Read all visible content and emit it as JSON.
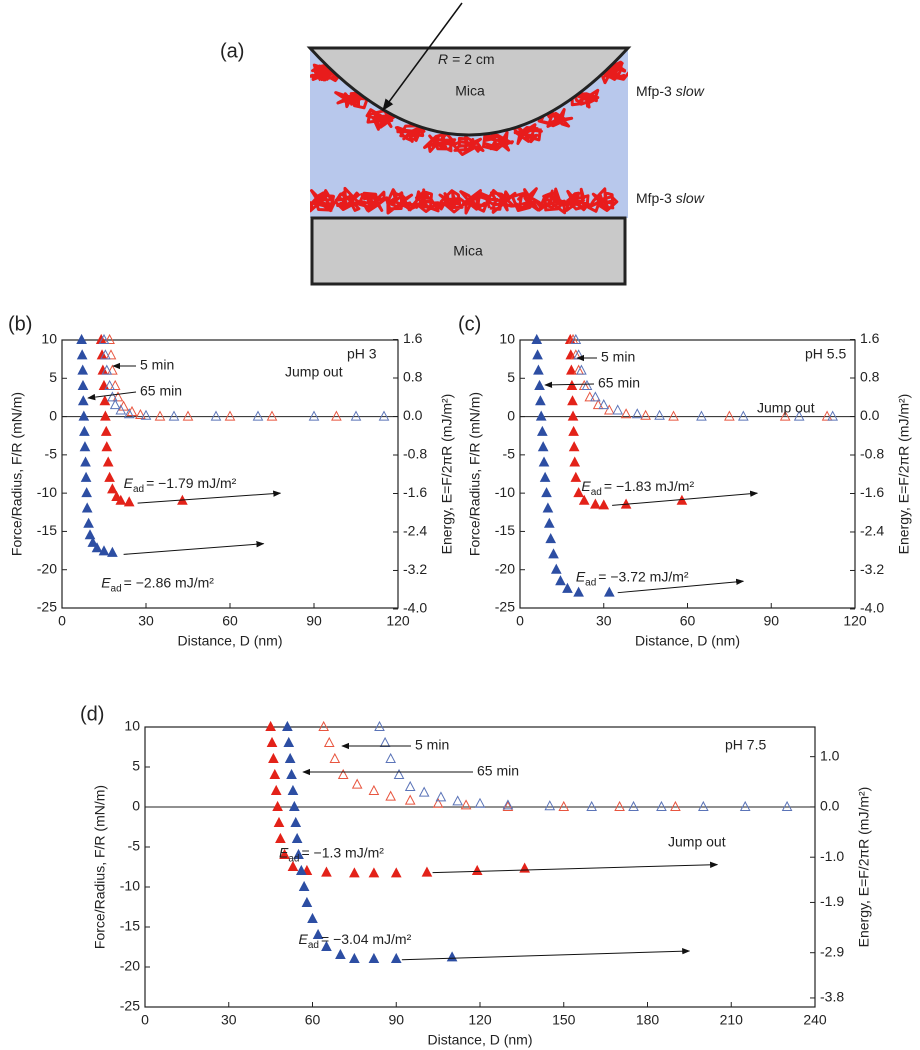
{
  "diagram": {
    "label": "(a)",
    "radius_symbol": "R",
    "radius_text": "= 2 cm",
    "top": "Mica",
    "bottom": "Mica",
    "films": [
      {
        "protein": "Mfp-3",
        "condition": "slow"
      },
      {
        "protein": "Mfp-3",
        "condition": "slow"
      }
    ]
  },
  "chart_data": [
    {
      "type": "scatter",
      "panel_label": "(b)",
      "xlabel": "Distance, D (nm)",
      "ylabel": "Force/Radius, F/R (mN/m)",
      "y2label": "Energy, E=F/2πR (mJ/m²)",
      "xlim": [
        0,
        120
      ],
      "xticks": [
        0,
        30,
        60,
        90,
        120
      ],
      "ylim": [
        -25,
        10
      ],
      "yticks": [
        -25,
        -20,
        -15,
        -10,
        -5,
        0,
        5,
        10
      ],
      "y2lim": [
        -3.98,
        1.59
      ],
      "y2ticks": [
        {
          "value": -4.0,
          "label": "-4.0"
        },
        -3.2,
        -2.4,
        -1.6,
        -0.8,
        {
          "value": 0,
          "label": "0.0"
        },
        0.8,
        1.6
      ],
      "annotations": {
        "condition": "pH 3",
        "short": "5 min",
        "long": "65 min",
        "jump": "Jump out",
        "energies": [
          {
            "symbol": "E",
            "subscript": "ad",
            "text": "= −1.79 mJ/m²"
          },
          {
            "symbol": "E",
            "subscript": "ad",
            "text": "= −2.86 mJ/m²"
          }
        ]
      },
      "series": [
        {
          "color": "#e32219",
          "marker": "filled",
          "x": [
            14,
            14.3,
            14.6,
            15,
            15.3,
            15.5,
            15.8,
            16,
            16.5,
            17,
            18,
            19.5,
            21,
            24,
            43
          ],
          "values": [
            10,
            8,
            6,
            4,
            2,
            0,
            -2,
            -4,
            -6,
            -8,
            -9.5,
            -10.5,
            -11,
            -11.2,
            -11
          ]
        },
        {
          "color": "#e8553f",
          "marker": "open",
          "x": [
            17,
            17.5,
            18,
            19,
            20,
            22,
            25,
            28,
            35,
            45,
            60,
            75,
            98
          ],
          "values": [
            10,
            8,
            6,
            4,
            2.5,
            1.3,
            0.6,
            0.2,
            0,
            0,
            0,
            0,
            0
          ]
        },
        {
          "color": "#2d4ea3",
          "marker": "filled",
          "x": [
            7,
            7.2,
            7.4,
            7.5,
            7.6,
            7.8,
            8,
            8.2,
            8.4,
            8.6,
            8.8,
            9,
            9.5,
            10,
            11,
            12.5,
            15,
            18
          ],
          "values": [
            10,
            8,
            6,
            4,
            2,
            0,
            -2,
            -4,
            -6,
            -8,
            -10,
            -12,
            -14,
            -15.5,
            -16.5,
            -17.2,
            -17.6,
            -17.8
          ]
        },
        {
          "color": "#5b74b8",
          "marker": "open",
          "x": [
            15,
            15.5,
            16,
            17,
            18,
            19,
            21,
            24,
            30,
            40,
            55,
            70,
            90,
            105,
            115
          ],
          "values": [
            10,
            8,
            6,
            4,
            2.5,
            1.5,
            0.8,
            0.3,
            0.1,
            0,
            0,
            0,
            0,
            0,
            0
          ]
        }
      ]
    },
    {
      "type": "scatter",
      "panel_label": "(c)",
      "xlabel": "Distance, D (nm)",
      "ylabel": "Force/Radius, F/R (mN/m)",
      "y2label": "Energy, E=F/2πR (mJ/m²)",
      "xlim": [
        0,
        120
      ],
      "xticks": [
        0,
        30,
        60,
        90,
        120
      ],
      "ylim": [
        -25,
        10
      ],
      "yticks": [
        -25,
        -20,
        -15,
        -10,
        -5,
        0,
        5,
        10
      ],
      "y2lim": [
        -3.98,
        1.59
      ],
      "y2ticks": [
        {
          "value": -4.0,
          "label": "-4.0"
        },
        -3.2,
        -2.4,
        -1.6,
        -0.8,
        {
          "value": 0,
          "label": "0.0"
        },
        0.8,
        1.6
      ],
      "annotations": {
        "condition": "pH 5.5",
        "short": "5 min",
        "long": "65 min",
        "jump": "Jump out",
        "energies": [
          {
            "symbol": "E",
            "subscript": "ad",
            "text": "= −1.83 mJ/m²"
          },
          {
            "symbol": "E",
            "subscript": "ad",
            "text": "= −3.72 mJ/m²"
          }
        ]
      },
      "series": [
        {
          "color": "#e32219",
          "marker": "filled",
          "x": [
            18,
            18.2,
            18.4,
            18.6,
            18.8,
            19,
            19.2,
            19.4,
            19.6,
            20,
            21,
            23,
            27,
            30,
            38,
            58
          ],
          "values": [
            10,
            8,
            6,
            4,
            2,
            0,
            -2,
            -4,
            -6,
            -8,
            -10,
            -11,
            -11.5,
            -11.6,
            -11.5,
            -11
          ]
        },
        {
          "color": "#e8553f",
          "marker": "open",
          "x": [
            19,
            20,
            21,
            23,
            25,
            28,
            32,
            38,
            45,
            55,
            75,
            95,
            110
          ],
          "values": [
            10,
            8,
            6,
            4,
            2.5,
            1.5,
            0.8,
            0.3,
            0.1,
            0,
            0,
            0,
            0
          ]
        },
        {
          "color": "#2d4ea3",
          "marker": "filled",
          "x": [
            6,
            6.3,
            6.6,
            7,
            7.3,
            7.6,
            8,
            8.3,
            8.6,
            9,
            9.5,
            10,
            10.5,
            11,
            12,
            13,
            14.5,
            17,
            21,
            32
          ],
          "values": [
            10,
            8,
            6,
            4,
            2,
            0,
            -2,
            -4,
            -6,
            -8,
            -10,
            -12,
            -14,
            -16,
            -18,
            -20,
            -21.5,
            -22.5,
            -23,
            -23
          ]
        },
        {
          "color": "#5b74b8",
          "marker": "open",
          "x": [
            20,
            21,
            22,
            24,
            27,
            30,
            35,
            42,
            50,
            65,
            80,
            100,
            112
          ],
          "values": [
            10,
            8,
            6,
            4,
            2.5,
            1.5,
            0.8,
            0.3,
            0.1,
            0,
            0,
            0,
            0
          ]
        }
      ]
    },
    {
      "type": "scatter",
      "panel_label": "(d)",
      "xlabel": "Distance, D (nm)",
      "ylabel": "Force/Radius, F/R (mN/m)",
      "y2label": "Energy, E=F/2πR (mJ/m²)",
      "xlim": [
        0,
        240
      ],
      "xticks": [
        0,
        30,
        60,
        90,
        120,
        150,
        180,
        210,
        240
      ],
      "ylim": [
        -25,
        10
      ],
      "yticks": [
        -25,
        -20,
        -15,
        -10,
        -5,
        0,
        5,
        10
      ],
      "y2lim": [
        -3.98,
        1.59
      ],
      "y2ticks": [
        -3.8,
        -2.9,
        -1.9,
        {
          "value": -1.0,
          "label": "-1.0"
        },
        {
          "value": 0,
          "label": "0.0"
        },
        {
          "value": 1.0,
          "label": "1.0"
        }
      ],
      "annotations": {
        "condition": "pH 7.5",
        "short": "5 min",
        "long": "65 min",
        "jump": "Jump out",
        "energies": [
          {
            "symbol": "E",
            "subscript": "ad",
            "text": "= −1.3 mJ/m²"
          },
          {
            "symbol": "E",
            "subscript": "ad",
            "text": "= −3.04 mJ/m²"
          }
        ]
      },
      "series": [
        {
          "color": "#e32219",
          "marker": "filled",
          "x": [
            45,
            45.5,
            46,
            46.5,
            47,
            47.5,
            48,
            48.5,
            50,
            53,
            58,
            65,
            75,
            82,
            90,
            101,
            119,
            136
          ],
          "values": [
            10,
            8,
            6,
            4,
            2,
            0,
            -2,
            -4,
            -6,
            -7.5,
            -8,
            -8.2,
            -8.3,
            -8.3,
            -8.3,
            -8.2,
            -8,
            -7.7
          ]
        },
        {
          "color": "#e8553f",
          "marker": "open",
          "x": [
            64,
            66,
            68,
            71,
            76,
            82,
            88,
            95,
            105,
            115,
            130,
            150,
            170,
            190
          ],
          "values": [
            10,
            8,
            6,
            4,
            2.8,
            2,
            1.3,
            0.8,
            0.4,
            0.2,
            0,
            0,
            0,
            0
          ]
        },
        {
          "color": "#2d4ea3",
          "marker": "filled",
          "x": [
            51,
            51.5,
            52,
            52.5,
            53,
            53.5,
            54,
            54.5,
            55,
            56,
            57,
            58,
            60,
            62,
            65,
            70,
            75,
            82,
            90,
            110
          ],
          "values": [
            10,
            8,
            6,
            4,
            2,
            0,
            -2,
            -4,
            -6,
            -8,
            -10,
            -12,
            -14,
            -16,
            -17.5,
            -18.5,
            -19,
            -19,
            -19,
            -18.8
          ]
        },
        {
          "color": "#5b74b8",
          "marker": "open",
          "x": [
            84,
            86,
            88,
            91,
            95,
            100,
            106,
            112,
            120,
            130,
            145,
            160,
            175,
            185,
            200,
            215,
            230
          ],
          "values": [
            10,
            8,
            6,
            4,
            2.5,
            1.8,
            1.2,
            0.7,
            0.4,
            0.2,
            0.1,
            0,
            0,
            0,
            0,
            0,
            0
          ]
        }
      ]
    }
  ]
}
